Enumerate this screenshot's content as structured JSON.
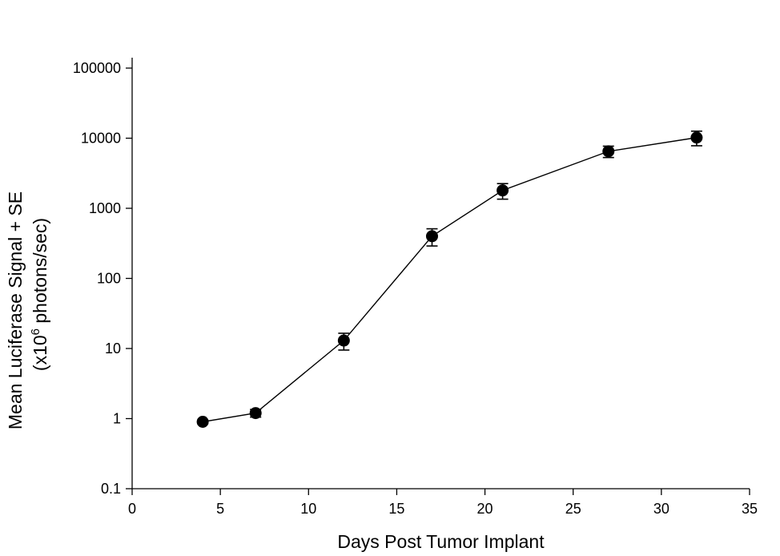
{
  "chart_data": {
    "type": "line",
    "title": "",
    "xlabel": "Days Post Tumor Implant",
    "ylabel": {
      "line1": "Mean Luciferase Signal + SE",
      "line2_prefix": "(x10",
      "line2_superscript": "6",
      "line2_suffix": " photons/sec)"
    },
    "x_scale": "linear",
    "y_scale": "log",
    "xlim": [
      0,
      35
    ],
    "ylim": [
      0.1,
      100000
    ],
    "x_ticks": [
      0,
      5,
      10,
      15,
      20,
      25,
      30,
      35
    ],
    "x_tick_labels": [
      "0",
      "5",
      "10",
      "15",
      "20",
      "25",
      "30",
      "35"
    ],
    "y_ticks": [
      0.1,
      1,
      10,
      100,
      1000,
      10000,
      100000
    ],
    "y_tick_labels": [
      "0.1",
      "1",
      "10",
      "100",
      "1000",
      "10000",
      "100000"
    ],
    "grid": false,
    "series": [
      {
        "name": "Mean luciferase signal",
        "marker": "filled-circle",
        "color": "#000000",
        "points": [
          {
            "x": 4,
            "y": 0.9,
            "err_low": 0.85,
            "err_high": 0.95
          },
          {
            "x": 7,
            "y": 1.2,
            "err_low": 1.05,
            "err_high": 1.35
          },
          {
            "x": 12,
            "y": 13,
            "err_low": 9.5,
            "err_high": 16.5
          },
          {
            "x": 17,
            "y": 400,
            "err_low": 290,
            "err_high": 510
          },
          {
            "x": 21,
            "y": 1800,
            "err_low": 1350,
            "err_high": 2250
          },
          {
            "x": 27,
            "y": 6500,
            "err_low": 5300,
            "err_high": 7700
          },
          {
            "x": 32,
            "y": 10200,
            "err_low": 7800,
            "err_high": 12600
          }
        ]
      }
    ]
  }
}
